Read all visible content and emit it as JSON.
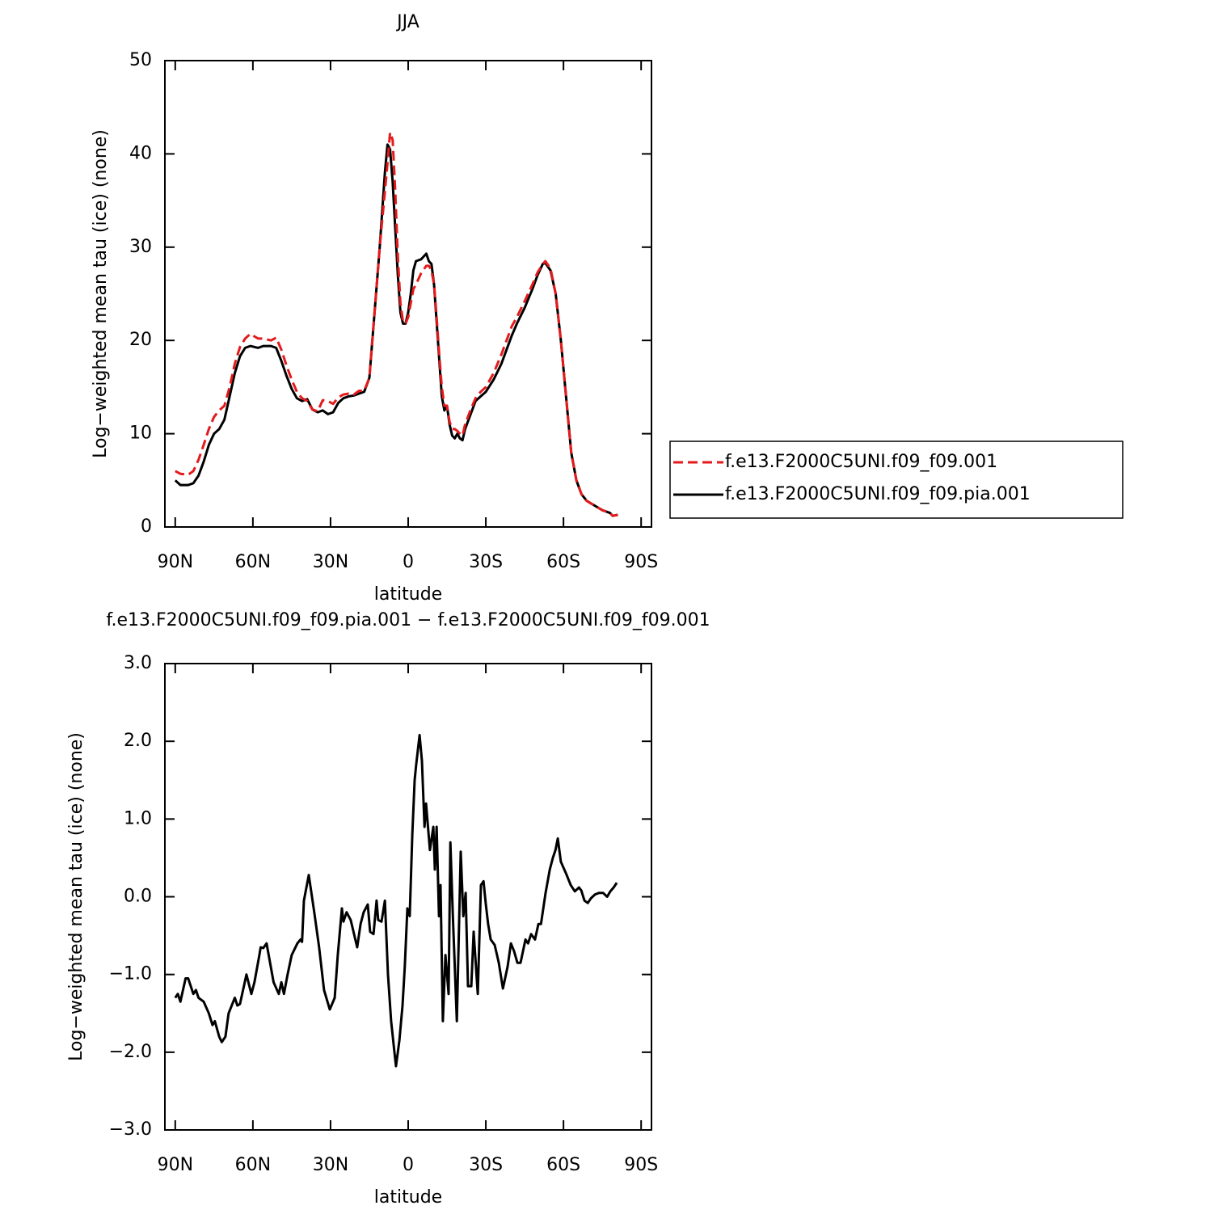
{
  "chart_data": [
    {
      "type": "line",
      "title": "JJA",
      "xlabel": "latitude",
      "ylabel": "Log−weighted mean tau (ice) (none)",
      "xlim": [
        94,
        -94
      ],
      "ylim": [
        0,
        50
      ],
      "xticks": [
        {
          "value": 90,
          "label": "90N"
        },
        {
          "value": 60,
          "label": "60N"
        },
        {
          "value": 30,
          "label": "30N"
        },
        0,
        {
          "value": -30,
          "label": "30S"
        },
        {
          "value": -60,
          "label": "60S"
        },
        {
          "value": -90,
          "label": "90S"
        }
      ],
      "yticks": [
        0,
        10,
        20,
        30,
        40,
        50
      ],
      "x": [
        90,
        88,
        85,
        83,
        81,
        79,
        77,
        75,
        73,
        71,
        69,
        67,
        65,
        63,
        61,
        58,
        56,
        53,
        51,
        49,
        47,
        45,
        43,
        41,
        39,
        37,
        35,
        33,
        31,
        29,
        27,
        25,
        23,
        21,
        19,
        17,
        15,
        13,
        11,
        9,
        8,
        7,
        6,
        5,
        4,
        3,
        2,
        1,
        0,
        -1,
        -2,
        -3,
        -5,
        -7,
        -8,
        -9,
        -10,
        -11,
        -12,
        -13,
        -14,
        -15,
        -16,
        -17,
        -18,
        -19,
        -20,
        -21,
        -22,
        -24,
        -26,
        -28,
        -30,
        -33,
        -36,
        -38,
        -40,
        -42,
        -45,
        -48,
        -50,
        -52,
        -53,
        -55,
        -57,
        -59,
        -61,
        -63,
        -65,
        -67,
        -69,
        -72,
        -75,
        -78,
        -79,
        -81
      ],
      "series": [
        {
          "name": "f.e13.F2000C5UNI.f09_f09.001",
          "color": "#e41a1c",
          "linestyle": "dashed",
          "values": [
            6,
            5.7,
            5.6,
            6.0,
            7.2,
            8.8,
            10.5,
            11.8,
            12.5,
            13,
            15,
            17.5,
            19.3,
            20.2,
            20.7,
            20.2,
            20.2,
            20,
            20.3,
            19,
            17.3,
            15.8,
            14.5,
            13.8,
            13.5,
            12.6,
            12.4,
            13.6,
            13.5,
            13.2,
            13.9,
            14.2,
            14.3,
            14.2,
            14.6,
            14.6,
            16,
            23,
            30,
            36,
            39,
            42.3,
            41.5,
            36,
            29,
            24,
            22,
            21.8,
            22.5,
            24,
            25.5,
            26,
            27.2,
            28,
            28,
            27.5,
            26,
            22.5,
            18.5,
            15,
            13,
            13,
            11.3,
            10.5,
            10.5,
            10.3,
            10,
            9.8,
            11,
            12.5,
            13.8,
            14.5,
            15,
            16.5,
            18.5,
            20,
            21.5,
            22.5,
            24.2,
            26,
            27.3,
            28.2,
            28.5,
            27.7,
            25,
            20,
            14,
            8,
            5,
            3.5,
            2.8,
            2.3,
            1.8,
            1.5,
            1.2,
            1.3
          ]
        },
        {
          "name": "f.e13.F2000C5UNI.f09_f09.pia.001",
          "color": "#000000",
          "linestyle": "solid",
          "values": [
            5.0,
            4.5,
            4.5,
            4.7,
            5.5,
            7,
            8.8,
            10,
            10.5,
            11.5,
            14,
            16.5,
            18.3,
            19.2,
            19.4,
            19.2,
            19.4,
            19.4,
            19.2,
            17.8,
            16.2,
            14.8,
            13.8,
            13.5,
            13.7,
            12.6,
            12.3,
            12.5,
            12.1,
            12.3,
            13.3,
            13.8,
            14.0,
            14.1,
            14.3,
            14.5,
            16,
            23,
            30,
            38,
            41,
            40.5,
            37,
            32,
            27,
            23,
            21.8,
            21.8,
            23,
            25,
            27.5,
            28.5,
            28.7,
            29.3,
            28.5,
            28.2,
            26,
            22,
            18,
            14,
            12.5,
            13,
            11,
            9.8,
            9.5,
            10,
            9.5,
            9.3,
            10.5,
            12,
            13.5,
            14,
            14.5,
            15.8,
            17.5,
            19,
            20.5,
            21.8,
            23.5,
            25.5,
            27,
            28.2,
            28.3,
            27.5,
            25,
            20,
            14,
            8,
            5,
            3.5,
            2.8,
            2.3,
            1.8,
            1.5,
            1.2,
            1.3
          ]
        }
      ]
    },
    {
      "type": "line",
      "title": "f.e13.F2000C5UNI.f09_f09.pia.001 − f.e13.F2000C5UNI.f09_f09.001",
      "xlabel": "latitude",
      "ylabel": "Log−weighted mean tau (ice) (none)",
      "xlim": [
        94,
        -94
      ],
      "ylim": [
        -3,
        3
      ],
      "xticks": [
        {
          "value": 90,
          "label": "90N"
        },
        {
          "value": 60,
          "label": "60N"
        },
        {
          "value": 30,
          "label": "30N"
        },
        0,
        {
          "value": -30,
          "label": "30S"
        },
        {
          "value": -60,
          "label": "60S"
        },
        {
          "value": -90,
          "label": "90S"
        }
      ],
      "yticks": [
        {
          "value": -3,
          "label": "−3.0"
        },
        {
          "value": -2,
          "label": "−2.0"
        },
        {
          "value": -1,
          "label": "−1.0"
        },
        {
          "value": 0,
          "label": "0.0"
        },
        {
          "value": 1,
          "label": "1.0"
        },
        {
          "value": 2,
          "label": "2.0"
        },
        {
          "value": 3,
          "label": "3.0"
        }
      ],
      "x": [
        90,
        89,
        88,
        86,
        85,
        83,
        82,
        81,
        79,
        77,
        75.6,
        74.7,
        73,
        72,
        70.6,
        69.4,
        67,
        66,
        65,
        62.5,
        60.6,
        59.4,
        57.5,
        57,
        56,
        54.7,
        52,
        50,
        49,
        48,
        46.6,
        45,
        42.8,
        41.6,
        41,
        40.3,
        38.4,
        36.3,
        34.4,
        32.5,
        30.3,
        28.4,
        27.2,
        25.6,
        25,
        23.8,
        22.2,
        19.7,
        18.4,
        17.2,
        15.6,
        14.7,
        13.4,
        12.2,
        11.6,
        10.3,
        9,
        7.8,
        6.6,
        5.3,
        4.7,
        3.4,
        2.2,
        1.3,
        0.3,
        -0.6,
        -1.6,
        -2.5,
        -3.1,
        -4.4,
        -5.3,
        -6.3,
        -6.9,
        -8.4,
        -9.7,
        -10.3,
        -11,
        -11.9,
        -12.5,
        -13.4,
        -14.4,
        -15.6,
        -16.3,
        -17.2,
        -18.8,
        -20.3,
        -21.3,
        -22.2,
        -23.1,
        -24.4,
        -25.3,
        -26.9,
        -28.1,
        -29.1,
        -30,
        -30.9,
        -31.9,
        -33.4,
        -35,
        -36.6,
        -38.4,
        -39.7,
        -40.9,
        -42.2,
        -43.4,
        -45.3,
        -46.3,
        -47.5,
        -49,
        -50.3,
        -51.3,
        -53.1,
        -54.7,
        -55.9,
        -56.9,
        -57.8,
        -59,
        -61,
        -62.8,
        -64.4,
        -66,
        -66.9,
        -68.1,
        -69.4,
        -70.6,
        -72.2,
        -73.8,
        -75.3,
        -76.9,
        -78.1,
        -79.4,
        -80.6
      ],
      "series": [
        {
          "color": "#000000",
          "linestyle": "solid",
          "values": [
            -1.3,
            -1.25,
            -1.35,
            -1.05,
            -1.05,
            -1.25,
            -1.2,
            -1.3,
            -1.35,
            -1.5,
            -1.65,
            -1.6,
            -1.8,
            -1.87,
            -1.8,
            -1.5,
            -1.3,
            -1.4,
            -1.38,
            -1.0,
            -1.25,
            -1.1,
            -0.75,
            -0.65,
            -0.66,
            -0.6,
            -1.1,
            -1.25,
            -1.1,
            -1.25,
            -1.0,
            -0.75,
            -0.6,
            -0.55,
            -0.58,
            -0.05,
            0.28,
            -0.2,
            -0.65,
            -1.2,
            -1.45,
            -1.3,
            -0.75,
            -0.15,
            -0.32,
            -0.2,
            -0.3,
            -0.65,
            -0.35,
            -0.2,
            -0.1,
            -0.45,
            -0.48,
            -0.05,
            -0.3,
            -0.32,
            -0.05,
            -1.0,
            -1.6,
            -2.0,
            -2.18,
            -1.85,
            -1.4,
            -0.9,
            -0.15,
            -0.25,
            0.8,
            1.5,
            1.7,
            2.08,
            1.75,
            0.9,
            1.2,
            0.6,
            0.9,
            0.35,
            0.9,
            -0.25,
            0.15,
            -1.6,
            -0.75,
            -1.25,
            0.7,
            -0.2,
            -1.6,
            0.58,
            -0.25,
            0.05,
            -1.15,
            -1.15,
            -0.45,
            -1.25,
            0.15,
            0.2,
            -0.1,
            -0.35,
            -0.55,
            -0.62,
            -0.85,
            -1.18,
            -0.9,
            -0.6,
            -0.7,
            -0.85,
            -0.85,
            -0.55,
            -0.6,
            -0.48,
            -0.55,
            -0.35,
            -0.35,
            0.05,
            0.35,
            0.5,
            0.6,
            0.75,
            0.45,
            0.3,
            0.15,
            0.07,
            0.12,
            0.08,
            -0.05,
            -0.08,
            -0.02,
            0.03,
            0.05,
            0.05,
            0.0,
            0.07,
            0.12,
            0.18
          ]
        }
      ]
    }
  ]
}
